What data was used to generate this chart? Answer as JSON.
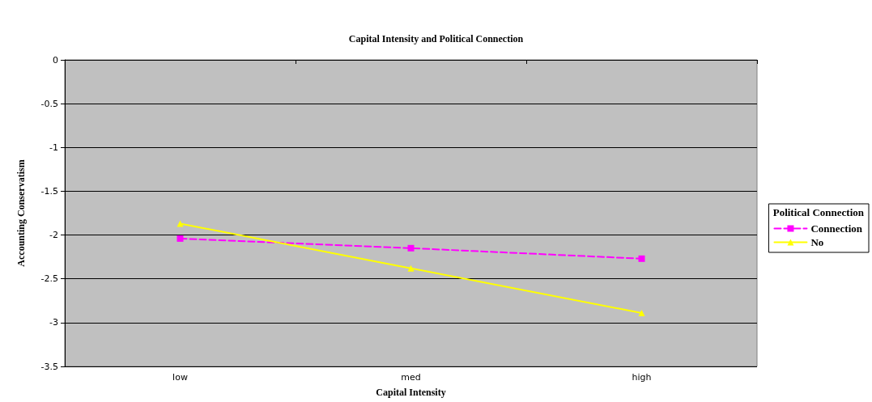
{
  "chart_data": {
    "type": "line",
    "title": "Capital Intensity and Political Connection",
    "xlabel": "Capital Intensity",
    "ylabel": "Accounting Conservatism",
    "legend_title": "Political Connection",
    "categories": [
      "low",
      "med",
      "high"
    ],
    "series": [
      {
        "name": "Connection",
        "color": "#ff00ff",
        "values": [
          -2.04,
          -2.15,
          -2.27
        ],
        "marker": "square",
        "line_style": "dashed"
      },
      {
        "name": "No",
        "color": "#ffff00",
        "values": [
          -1.87,
          -2.38,
          -2.89
        ],
        "marker": "triangle",
        "line_style": "solid"
      }
    ],
    "ylim": [
      -3.5,
      0
    ],
    "yticks": [
      -3.5,
      -3,
      -2.5,
      -2,
      -1.5,
      -1,
      -0.5,
      0
    ],
    "grid": "y",
    "legend": "right"
  }
}
